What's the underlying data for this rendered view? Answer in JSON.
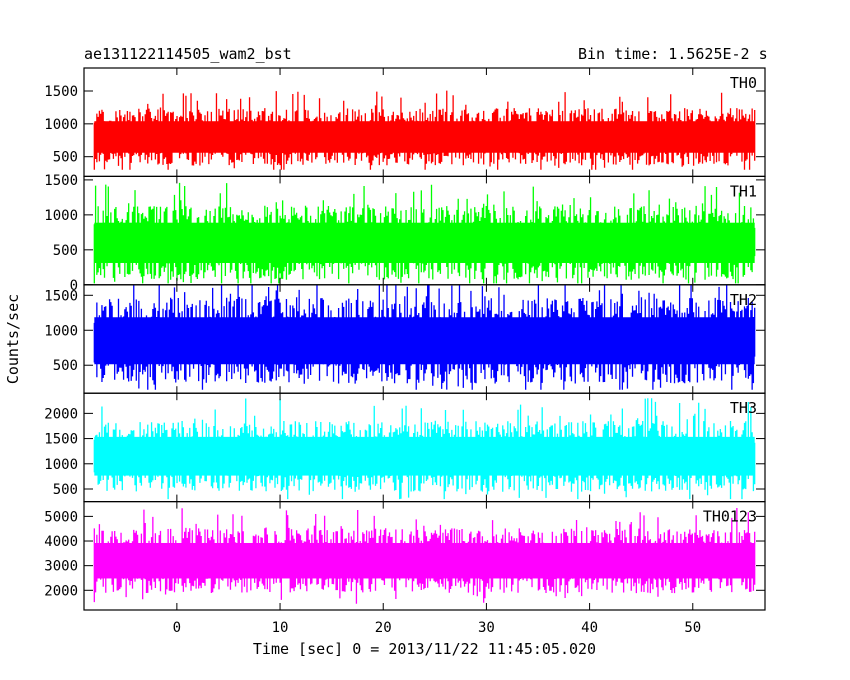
{
  "chart_data": {
    "type": "line",
    "title_left": "ae131122114505_wam2_bst",
    "title_right": "Bin time: 1.5625E-2 s",
    "xlabel": "Time [sec] 0 = 2013/11/22 11:45:05.020",
    "ylabel": "Counts/sec",
    "xlim": [
      -9,
      57
    ],
    "x_ticks": [
      0,
      10,
      20,
      30,
      40,
      50
    ],
    "x_tick_labels": [
      "0",
      "10",
      "20",
      "30",
      "40",
      "50"
    ],
    "x_range": [
      -8,
      56
    ],
    "grid": false,
    "panels": [
      {
        "name": "TH0",
        "color": "#ff0000",
        "ylim": [
          200,
          1850
        ],
        "y_ticks": [
          500,
          1000,
          1500
        ],
        "y_tick_labels": [
          "500",
          "1000",
          "1500"
        ],
        "baseline": 800,
        "noise": 200,
        "min": 300,
        "max": 1850
      },
      {
        "name": "TH1",
        "color": "#00ff00",
        "ylim": [
          0,
          1550
        ],
        "y_ticks": [
          0,
          500,
          1000,
          1500
        ],
        "y_tick_labels": [
          "0",
          "500",
          "1000",
          "1500"
        ],
        "baseline": 600,
        "noise": 240,
        "min": 20,
        "max": 1550
      },
      {
        "name": "TH2",
        "color": "#0000ff",
        "ylim": [
          100,
          1650
        ],
        "y_ticks": [
          500,
          1000,
          1500
        ],
        "y_tick_labels": [
          "500",
          "1000",
          "1500"
        ],
        "baseline": 850,
        "noise": 280,
        "min": 150,
        "max": 1650
      },
      {
        "name": "TH3",
        "color": "#00ffff",
        "ylim": [
          250,
          2400
        ],
        "y_ticks": [
          500,
          1000,
          1500,
          2000
        ],
        "y_tick_labels": [
          "500",
          "1000",
          "1500",
          "2000"
        ],
        "baseline": 1150,
        "noise": 320,
        "min": 300,
        "max": 2400
      },
      {
        "name": "TH0123",
        "color": "#ff00ff",
        "ylim": [
          1200,
          5600
        ],
        "y_ticks": [
          2000,
          3000,
          4000,
          5000
        ],
        "y_tick_labels": [
          "2000",
          "3000",
          "4000",
          "5000"
        ],
        "baseline": 3200,
        "noise": 600,
        "min": 1300,
        "max": 5500
      }
    ]
  }
}
